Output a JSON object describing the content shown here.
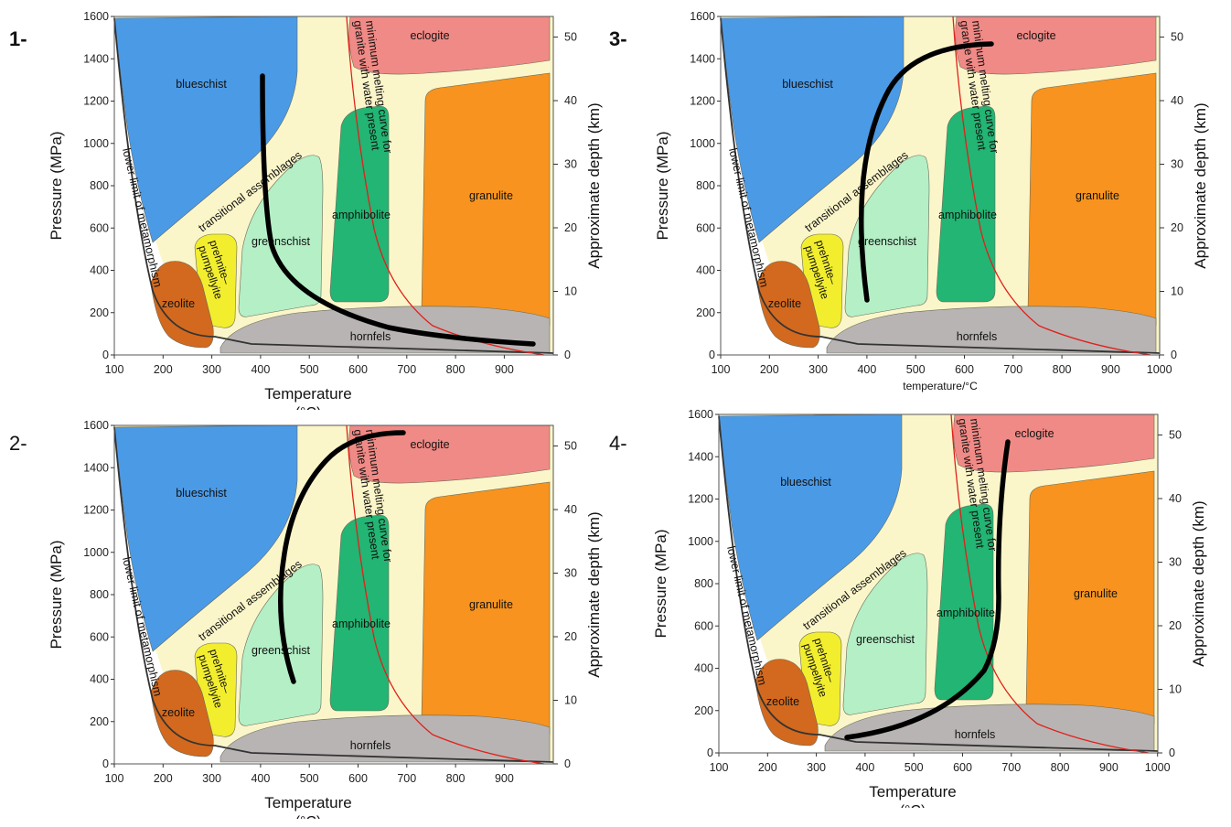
{
  "panels": [
    {
      "number": "1-",
      "number_bold": true,
      "ylabel": "Pressure (MPa)",
      "y2label": "Approximate depth (km)",
      "xlabel": "Temperature",
      "xlabel_tail": "(°C)",
      "xticks": [
        "100",
        "200",
        "300",
        "400",
        "500",
        "600",
        "700",
        "800",
        "900"
      ],
      "arrow": "1"
    },
    {
      "number": "3-",
      "number_bold": true,
      "ylabel": "Pressure (MPa)",
      "y2label": "Approximate depth (km)",
      "xlabel": "temperature/°C",
      "xlabel_tail": "",
      "xticks": [
        "100",
        "200",
        "300",
        "400",
        "500",
        "600",
        "700",
        "800",
        "900",
        "1000"
      ],
      "arrow": "3"
    },
    {
      "number": "2-",
      "number_bold": false,
      "ylabel": "Pressure (MPa)",
      "y2label": "Approximate depth (km)",
      "xlabel": "Temperature",
      "xlabel_tail": "(°C)",
      "xticks": [
        "100",
        "200",
        "300",
        "400",
        "500",
        "600",
        "700",
        "800",
        "900"
      ],
      "arrow": "2"
    },
    {
      "number": "4-",
      "number_bold": false,
      "ylabel": "Pressure (MPa)",
      "y2label": "Approximate depth (km)",
      "xlabel": "Temperature",
      "xlabel_tail": "(°C)",
      "xticks": [
        "100",
        "200",
        "300",
        "400",
        "500",
        "600",
        "700",
        "800",
        "900",
        "1000"
      ],
      "arrow": "4"
    }
  ],
  "yticks": [
    "0",
    "200",
    "400",
    "600",
    "800",
    "1000",
    "1200",
    "1400",
    "1600"
  ],
  "depth_ticks": [
    "0",
    "10",
    "20",
    "30",
    "40",
    "50"
  ],
  "facies": {
    "blueschist": "blueschist",
    "eclogite": "eclogite",
    "granulite": "granulite",
    "amphibolite": "amphibolite",
    "greenschist": "greenschist",
    "hornfels": "hornfels",
    "zeolite": "zeolite",
    "prehnite": "prehnite–",
    "pumpellyite": "pumpellyite",
    "transitional": "transitional assemblages",
    "lower_limit": "lower limit of metamorphism",
    "melting1": "minimum melting curve for",
    "melting2": "granite with water present"
  },
  "colors": {
    "background": "#fbf6c9",
    "blueschist": "#4b9ae6",
    "eclogite": "#f08a86",
    "granulite": "#f7931e",
    "amphibolite": "#22b573",
    "greenschist": "#b4efc6",
    "hornfels": "#b8b4b3",
    "zeolite": "#d2691e",
    "prehnite": "#f2ee2e",
    "melting_curve": "#e0201b",
    "arrow": "#000000"
  }
}
